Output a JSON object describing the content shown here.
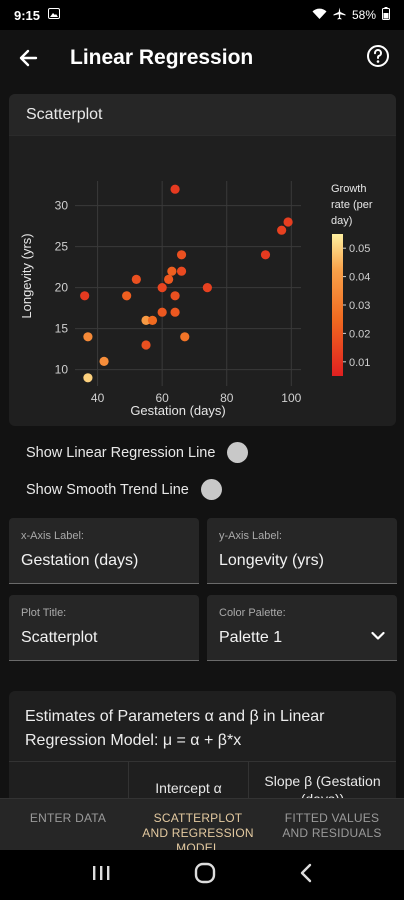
{
  "status_bar": {
    "time": "9:15",
    "battery": "58%"
  },
  "app_bar": {
    "title": "Linear Regression"
  },
  "scatter_card": {
    "title": "Scatterplot"
  },
  "chart_data": {
    "type": "scatter",
    "xlabel": "Gestation (days)",
    "ylabel": "Longevity (yrs)",
    "xlim": [
      33,
      103
    ],
    "ylim": [
      8,
      33
    ],
    "x_ticks": [
      40,
      60,
      80,
      100
    ],
    "y_ticks": [
      10,
      15,
      20,
      25,
      30
    ],
    "legend": {
      "title_lines": [
        "Growth",
        "rate (per",
        "day)"
      ],
      "ticks": [
        0.01,
        0.02,
        0.03,
        0.04,
        0.05
      ],
      "range": [
        0.005,
        0.055
      ],
      "colors": [
        "#e02020",
        "#f06a20",
        "#f9a24a",
        "#fff0a0"
      ]
    },
    "points": [
      {
        "x": 36,
        "y": 19,
        "c": 0.012
      },
      {
        "x": 37,
        "y": 14,
        "c": 0.035
      },
      {
        "x": 37,
        "y": 9,
        "c": 0.05
      },
      {
        "x": 42,
        "y": 11,
        "c": 0.036
      },
      {
        "x": 49,
        "y": 19,
        "c": 0.022
      },
      {
        "x": 52,
        "y": 21,
        "c": 0.018
      },
      {
        "x": 55,
        "y": 16,
        "c": 0.04
      },
      {
        "x": 55,
        "y": 13,
        "c": 0.018
      },
      {
        "x": 57,
        "y": 16,
        "c": 0.025
      },
      {
        "x": 60,
        "y": 17,
        "c": 0.02
      },
      {
        "x": 60,
        "y": 20,
        "c": 0.015
      },
      {
        "x": 62,
        "y": 21,
        "c": 0.02
      },
      {
        "x": 63,
        "y": 22,
        "c": 0.022
      },
      {
        "x": 64,
        "y": 19,
        "c": 0.018
      },
      {
        "x": 64,
        "y": 17,
        "c": 0.02
      },
      {
        "x": 64,
        "y": 32,
        "c": 0.012
      },
      {
        "x": 66,
        "y": 22,
        "c": 0.016
      },
      {
        "x": 66,
        "y": 24,
        "c": 0.018
      },
      {
        "x": 67,
        "y": 14,
        "c": 0.028
      },
      {
        "x": 74,
        "y": 20,
        "c": 0.014
      },
      {
        "x": 92,
        "y": 24,
        "c": 0.012
      },
      {
        "x": 97,
        "y": 27,
        "c": 0.014
      },
      {
        "x": 99,
        "y": 28,
        "c": 0.013
      }
    ]
  },
  "toggles": {
    "regression_line": "Show Linear Regression Line",
    "smooth_trend": "Show Smooth Trend Line"
  },
  "fields": {
    "x_axis_label": {
      "label": "x-Axis Label:",
      "value": "Gestation (days)"
    },
    "y_axis_label": {
      "label": "y-Axis Label:",
      "value": "Longevity (yrs)"
    },
    "plot_title": {
      "label": "Plot Title:",
      "value": "Scatterplot"
    },
    "color_palette": {
      "label": "Color Palette:",
      "value": "Palette 1"
    }
  },
  "estimates": {
    "title": "Estimates of Parameters α and β in Linear Regression Model: μ = α + β*x",
    "headers": [
      "",
      "Intercept α",
      "Slope β (Gestation (days))"
    ]
  },
  "bottom_nav": [
    {
      "label": "ENTER DATA"
    },
    {
      "label": "SCATTERPLOT AND REGRESSION MODEL"
    },
    {
      "label": "FITTED VALUES AND RESIDUALS"
    }
  ]
}
